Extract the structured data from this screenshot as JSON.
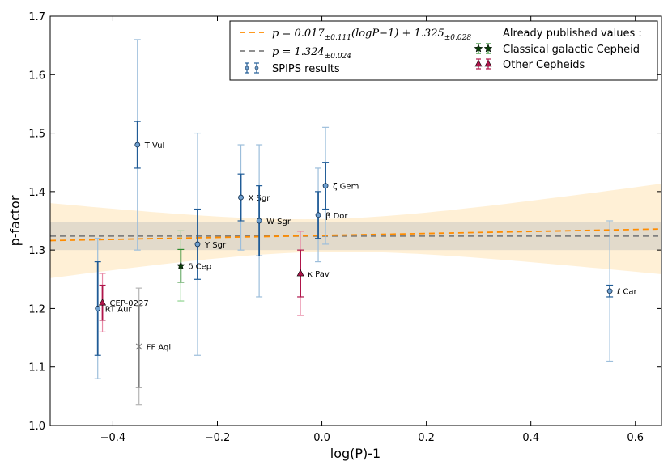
{
  "chart_data": {
    "type": "scatter",
    "xlabel": "log(P)-1",
    "ylabel": "p-factor",
    "xlim": [
      -0.52,
      0.65
    ],
    "ylim": [
      1.0,
      1.7
    ],
    "xticks": [
      -0.4,
      -0.2,
      0.0,
      0.2,
      0.4,
      0.6
    ],
    "yticks": [
      1.0,
      1.1,
      1.2,
      1.3,
      1.4,
      1.5,
      1.6,
      1.7
    ],
    "xtick_labels": [
      "−0.4",
      "−0.2",
      "0.0",
      "0.2",
      "0.4",
      "0.6"
    ],
    "ytick_labels": [
      "1.0",
      "1.1",
      "1.2",
      "1.3",
      "1.4",
      "1.5",
      "1.6",
      "1.7"
    ],
    "grid": false,
    "legend_position": "top-right",
    "fits": {
      "linear": {
        "slope": 0.017,
        "intercept": 1.325,
        "slope_err": "0.111",
        "intercept_err": "0.028",
        "color": "#ff8c00"
      },
      "constant": {
        "value": 1.324,
        "value_err": "0.024",
        "color": "#808080"
      }
    },
    "legend": {
      "linear_pre": "p = 0.017",
      "linear_err1": "±0.111",
      "linear_mid": "(logP−1) + 1.325",
      "linear_err2": "±0.028",
      "constant_pre": "p = 1.324",
      "constant_err": "±0.024",
      "spips": "SPIPS results",
      "published_title": "Already published values :",
      "classical": "Classical galactic Cepheid",
      "other": "Other Cepheids"
    },
    "series": [
      {
        "name": "SPIPS results",
        "marker": "circle",
        "color": "#1f5b96",
        "points": [
          {
            "label": "T Vul",
            "x": -0.353,
            "y": 1.48,
            "err_inner": 0.04,
            "err_outer": 0.18
          },
          {
            "label": "X Sgr",
            "x": -0.155,
            "y": 1.39,
            "err_inner": 0.04,
            "err_outer": 0.09
          },
          {
            "label": "W Sgr",
            "x": -0.12,
            "y": 1.35,
            "err_inner": 0.06,
            "err_outer": 0.13
          },
          {
            "label": "ζ Gem",
            "x": 0.007,
            "y": 1.41,
            "err_inner": 0.04,
            "err_outer": 0.1
          },
          {
            "label": "β Dor",
            "x": -0.007,
            "y": 1.36,
            "err_inner": 0.04,
            "err_outer": 0.08
          },
          {
            "label": "Y Sgr",
            "x": -0.238,
            "y": 1.31,
            "err_inner": 0.06,
            "err_outer": 0.19
          },
          {
            "label": "RT Aur",
            "x": -0.429,
            "y": 1.2,
            "err_inner": 0.08,
            "err_outer": 0.12
          },
          {
            "label": "ℓ Car",
            "x": 0.551,
            "y": 1.23,
            "err_inner": 0.01,
            "err_outer": 0.12
          }
        ]
      },
      {
        "name": "Classical galactic Cepheid",
        "marker": "star",
        "color": "#2e8b2e",
        "points": [
          {
            "label": "δ Cep",
            "x": -0.27,
            "y": 1.273,
            "err_inner": 0.028,
            "err_outer": 0.06
          }
        ]
      },
      {
        "name": "Other Cepheids",
        "marker": "triangle",
        "color": "#b0154a",
        "points": [
          {
            "label": "κ Pav",
            "x": -0.041,
            "y": 1.26,
            "err_inner": 0.04,
            "err_outer": 0.072
          },
          {
            "label": "CEP-0227",
            "x": -0.42,
            "y": 1.21,
            "err_inner": 0.03,
            "err_outer": 0.05
          }
        ]
      },
      {
        "name": "FF Aql",
        "marker": "x",
        "color": "#7f7f7f",
        "points": [
          {
            "label": "FF Aql",
            "x": -0.35,
            "y": 1.135,
            "err_inner": 0.07,
            "err_outer": 0.1
          }
        ]
      }
    ]
  }
}
